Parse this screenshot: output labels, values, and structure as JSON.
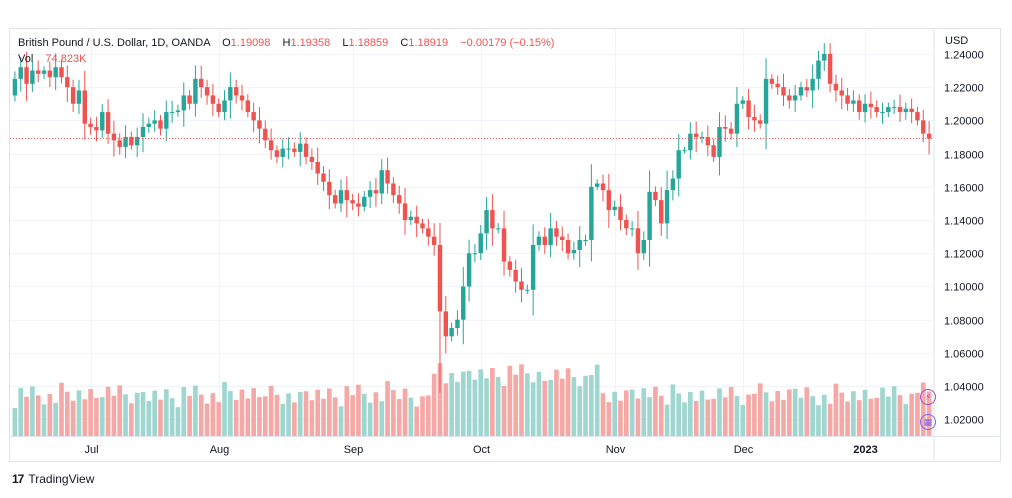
{
  "legend": {
    "symbol": "British Pound / U.S. Dollar, 1D, OANDA",
    "open_label": "O",
    "open": "1.19098",
    "high_label": "H",
    "high": "1.19358",
    "low_label": "L",
    "low": "1.18859",
    "close_label": "C",
    "close": "1.18919",
    "change": "−0.00179 (−0.15%)",
    "vol_label": "Vol",
    "vol": "74.823K"
  },
  "price_scale": {
    "currency": "USD"
  },
  "branding": {
    "logo": "17",
    "name": "TradingView"
  },
  "colors": {
    "up": "#26a69a",
    "down": "#ef5350",
    "vol_up": "#9fd6cf",
    "vol_down": "#f5a9a6",
    "grid": "#f0f3fa",
    "last_price": "#ef5350"
  },
  "icons": {
    "flash": "flash-icon",
    "calendar": "calendar-icon"
  },
  "chart_data": {
    "type": "candlestick",
    "ylim": [
      1.01,
      1.255
    ],
    "y_ticks": [
      "1.24000",
      "1.22000",
      "1.20000",
      "1.18000",
      "1.16000",
      "1.14000",
      "1.12000",
      "1.10000",
      "1.08000",
      "1.06000",
      "1.04000",
      "1.02000"
    ],
    "y_tick_values": [
      1.24,
      1.22,
      1.2,
      1.18,
      1.16,
      1.14,
      1.12,
      1.1,
      1.08,
      1.06,
      1.04,
      1.02
    ],
    "x_ticks": [
      {
        "label": "Jul",
        "bar": 13
      },
      {
        "label": "Aug",
        "bar": 35
      },
      {
        "label": "Sep",
        "bar": 58
      },
      {
        "label": "Oct",
        "bar": 80
      },
      {
        "label": "Nov",
        "bar": 103
      },
      {
        "label": "Dec",
        "bar": 125
      },
      {
        "label": "2023",
        "bar": 146
      }
    ],
    "last_price": 1.18919,
    "path": [
      1.225,
      1.232,
      1.222,
      1.23,
      1.228,
      1.23,
      1.226,
      1.232,
      1.226,
      1.22,
      1.21,
      1.218,
      1.198,
      1.196,
      1.194,
      1.205,
      1.192,
      1.188,
      1.184,
      1.19,
      1.185,
      1.19,
      1.196,
      1.198,
      1.2,
      1.195,
      1.205,
      1.205,
      1.206,
      1.215,
      1.21,
      1.225,
      1.22,
      1.215,
      1.21,
      1.205,
      1.212,
      1.22,
      1.215,
      1.212,
      1.205,
      1.2,
      1.195,
      1.188,
      1.182,
      1.178,
      1.183,
      1.183,
      1.181,
      1.186,
      1.178,
      1.175,
      1.168,
      1.163,
      1.155,
      1.15,
      1.158,
      1.152,
      1.15,
      1.148,
      1.154,
      1.158,
      1.156,
      1.17,
      1.162,
      1.155,
      1.15,
      1.14,
      1.142,
      1.138,
      1.135,
      1.13,
      1.125,
      1.085,
      1.07,
      1.075,
      1.08,
      1.1,
      1.12,
      1.12,
      1.132,
      1.146,
      1.135,
      1.135,
      1.115,
      1.11,
      1.103,
      1.098,
      1.098,
      1.125,
      1.13,
      1.125,
      1.135,
      1.13,
      1.128,
      1.12,
      1.122,
      1.128,
      1.128,
      1.16,
      1.162,
      1.158,
      1.146,
      1.148,
      1.14,
      1.135,
      1.135,
      1.12,
      1.128,
      1.157,
      1.152,
      1.138,
      1.158,
      1.165,
      1.182,
      1.182,
      1.192,
      1.19,
      1.19,
      1.185,
      1.178,
      1.196,
      1.195,
      1.192,
      1.21,
      1.212,
      1.202,
      1.2,
      1.198,
      1.225,
      1.222,
      1.22,
      1.215,
      1.212,
      1.215,
      1.22,
      1.218,
      1.225,
      1.236,
      1.24,
      1.222,
      1.218,
      1.215,
      1.21,
      1.212,
      1.205,
      1.21,
      1.208,
      1.205,
      1.205,
      1.208,
      1.208,
      1.205,
      1.207,
      1.205,
      1.2,
      1.192,
      1.189
    ],
    "volume_ylim": [
      0,
      60
    ]
  }
}
